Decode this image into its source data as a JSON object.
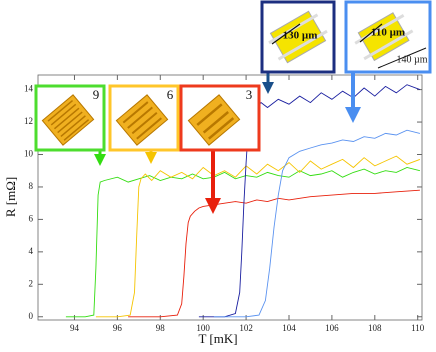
{
  "chart_data": {
    "type": "line",
    "x_label": "T [mK]",
    "y_label": "R [mΩ]",
    "xlim": [
      92.3,
      110.2
    ],
    "ylim": [
      -0.2,
      14.9
    ],
    "xticks": [
      94,
      96,
      98,
      100,
      102,
      104,
      106,
      108,
      110
    ],
    "yticks": [
      0,
      2,
      4,
      6,
      8,
      10,
      12,
      14
    ],
    "annotations": [
      "9",
      "6",
      "3",
      "130 µm",
      "110 µm",
      "140 µm"
    ],
    "series": [
      {
        "color": "#33dd11",
        "x": [
          93.6,
          94.5,
          94.9,
          95.0,
          95.1,
          95.2,
          95.4,
          96,
          96.5,
          97,
          97.5,
          98,
          98.5,
          99,
          99.5,
          100,
          100.5,
          101,
          101.5,
          102,
          102.5,
          103,
          103.5,
          104,
          104.5,
          105,
          105.5,
          106,
          106.5,
          107,
          107.5,
          108,
          108.5,
          109,
          109.5,
          110.1
        ],
        "values": [
          0,
          0,
          0.1,
          3,
          7.5,
          8.3,
          8.4,
          8.6,
          8.3,
          8.5,
          8.7,
          8.4,
          8.6,
          8.5,
          8.8,
          8.5,
          8.6,
          8.9,
          8.5,
          8.7,
          8.6,
          8.9,
          8.7,
          8.6,
          9.0,
          8.7,
          8.8,
          9.0,
          8.6,
          8.9,
          9.1,
          8.8,
          9.0,
          8.9,
          9.2,
          9.0
        ]
      },
      {
        "color": "#f5c400",
        "x": [
          95.0,
          96.0,
          96.6,
          96.8,
          96.9,
          97.0,
          97.1,
          97.3,
          97.6,
          98,
          98.5,
          99,
          99.5,
          100,
          100.5,
          101,
          101.5,
          102,
          102.5,
          103,
          103.5,
          104,
          104.5,
          105,
          105.5,
          106,
          106.5,
          107,
          107.5,
          108,
          108.5,
          109,
          109.5,
          110.1
        ],
        "values": [
          0,
          0,
          0.1,
          1.5,
          5,
          8,
          8.5,
          8.8,
          8.4,
          9.0,
          8.6,
          8.9,
          8.5,
          9.2,
          8.7,
          9.0,
          8.6,
          9.3,
          8.8,
          9.4,
          9.0,
          9.5,
          8.9,
          9.6,
          9.1,
          9.4,
          9.7,
          9.2,
          9.8,
          9.3,
          9.6,
          9.9,
          9.4,
          9.7
        ]
      },
      {
        "color": "#e8200c",
        "x": [
          96.5,
          98,
          98.8,
          99.0,
          99.1,
          99.2,
          99.3,
          99.4,
          99.6,
          99.8,
          100,
          100.5,
          101,
          101.5,
          102,
          102.5,
          103,
          103.5,
          104,
          104.5,
          105,
          106,
          107,
          108,
          109,
          110.1
        ],
        "values": [
          0,
          0,
          0.1,
          0.8,
          2.5,
          4.5,
          5.8,
          6.2,
          6.5,
          6.7,
          6.8,
          6.9,
          7.0,
          7.1,
          7.0,
          7.2,
          7.1,
          7.3,
          7.2,
          7.3,
          7.4,
          7.5,
          7.6,
          7.6,
          7.7,
          7.8
        ]
      },
      {
        "color": "#1a1fa0",
        "x": [
          99.8,
          101,
          101.5,
          101.7,
          101.8,
          101.9,
          102.0,
          102.1,
          102.2,
          102.4,
          102.7,
          103,
          103.5,
          104,
          104.5,
          105,
          105.5,
          106,
          106.5,
          107,
          107.5,
          108,
          108.5,
          109,
          109.5,
          110.1
        ],
        "values": [
          0,
          0,
          0.2,
          1.5,
          4,
          7,
          9.5,
          11.5,
          12.4,
          12.8,
          13.2,
          12.9,
          13.4,
          13.1,
          13.6,
          13.2,
          13.8,
          13.4,
          13.9,
          13.5,
          14.1,
          13.6,
          14.2,
          13.8,
          14.3,
          14.0
        ]
      },
      {
        "color": "#5b93f0",
        "x": [
          100.5,
          102,
          102.6,
          102.9,
          103.1,
          103.3,
          103.5,
          103.7,
          104,
          104.5,
          105,
          105.5,
          106,
          106.5,
          107,
          107.5,
          108,
          108.5,
          109,
          109.5,
          110.1
        ],
        "values": [
          0,
          0,
          0.1,
          1,
          3,
          5.5,
          7.5,
          9,
          9.8,
          10.2,
          10.4,
          10.6,
          10.7,
          10.9,
          10.8,
          11.1,
          11.0,
          11.3,
          11.2,
          11.5,
          11.3
        ]
      }
    ]
  }
}
